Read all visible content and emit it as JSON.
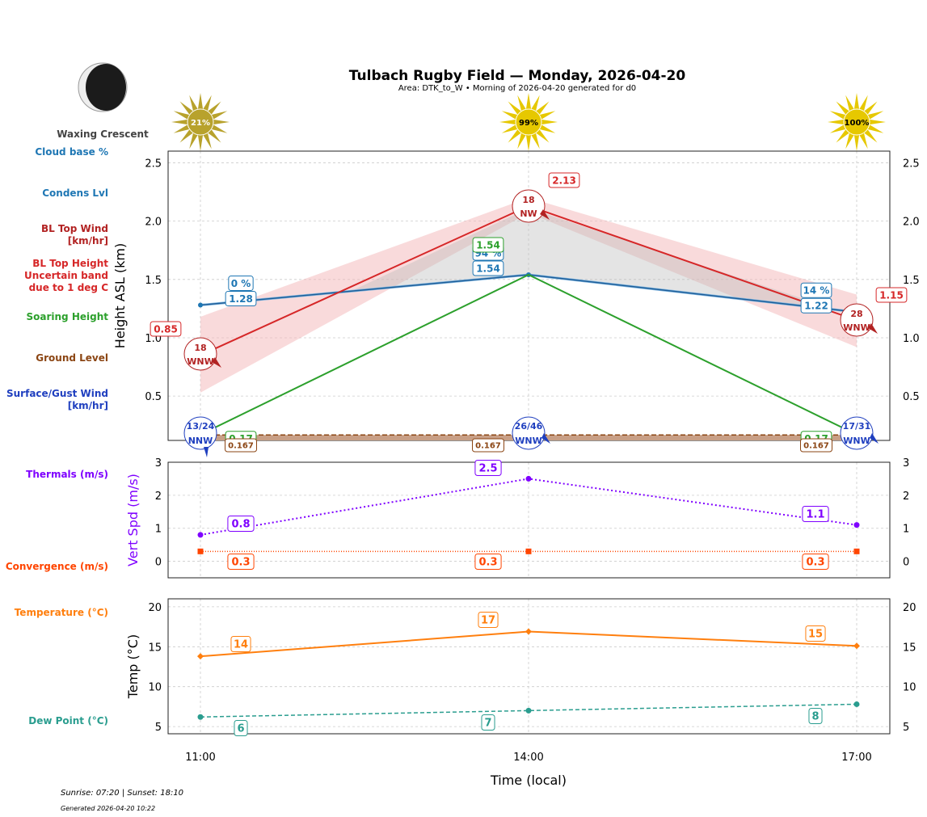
{
  "title": "Tulbach Rugby Field — Monday, 2026-04-20",
  "subtitle": "Area: DTK_to_W • Morning of 2026-04-20 generated for d0",
  "moon_phase": "Waxing Crescent",
  "sunrise_sunset": "Sunrise: 07:20 | Sunset: 18:10",
  "generated": "Generated 2026-04-20 10:22",
  "row_labels": [
    {
      "text": "Cloud base %",
      "color": "#1f77b4"
    },
    {
      "text": "Condens Lvl",
      "color": "#1f77b4"
    },
    {
      "text": "BL Top Wind|[km/hr]",
      "color": "#b22222"
    },
    {
      "text": "BL Top Height|Uncertain band|due to 1 deg C",
      "color": "#d62728"
    },
    {
      "text": "Soaring Height",
      "color": "#2ca02c"
    },
    {
      "text": "Ground Level",
      "color": "#8b4513"
    },
    {
      "text": "Surface/Gust Wind|[km/hr]",
      "color": "#1f3fbf"
    },
    {
      "text": "Thermals (m/s)",
      "color": "#7f00ff"
    },
    {
      "text": "Convergence (m/s)",
      "color": "#ff4500"
    },
    {
      "text": "Temperature (°C)",
      "color": "#ff7f0e"
    },
    {
      "text": "Dew Point (°C)",
      "color": "#2a9d8f"
    }
  ],
  "chart_data": [
    {
      "type": "line",
      "ylabel": "Height ASL (km)",
      "ylim": [
        0.12,
        2.6
      ],
      "yticks": [
        0.5,
        1.0,
        1.5,
        2.0,
        2.5
      ],
      "grid": true,
      "x": [
        "11:00",
        "14:00",
        "17:00"
      ],
      "sun_percent": [
        "21%",
        "99%",
        "100%"
      ],
      "cloud_base_percent": [
        "0 %",
        "94 %",
        "14 %"
      ],
      "condens_lvl": [
        1.28,
        1.54,
        1.22
      ],
      "bl_top": [
        0.85,
        2.13,
        1.15
      ],
      "bl_band_low": [
        0.53,
        2.07,
        0.92
      ],
      "bl_band_high": [
        1.18,
        2.2,
        1.37
      ],
      "bl_wind": [
        {
          "speed": "18",
          "dir": "WNW"
        },
        {
          "speed": "18",
          "dir": "NW"
        },
        {
          "speed": "28",
          "dir": "WNW"
        }
      ],
      "soaring": [
        0.17,
        1.54,
        0.17
      ],
      "ground": 0.167,
      "surface_wind": [
        {
          "speed": "13/24",
          "dir": "NNW"
        },
        {
          "speed": "26/46",
          "dir": "WNW"
        },
        {
          "speed": "17/31",
          "dir": "WNW"
        }
      ]
    },
    {
      "type": "line",
      "ylabel": "Vert Spd (m/s)",
      "ylim": [
        -0.5,
        3.0
      ],
      "yticks": [
        0,
        1,
        2,
        3
      ],
      "grid": true,
      "x": [
        "11:00",
        "14:00",
        "17:00"
      ],
      "thermals": [
        0.8,
        2.5,
        1.1
      ],
      "convergence": [
        0.3,
        0.3,
        0.3
      ]
    },
    {
      "type": "line",
      "ylabel": "Temp (°C)",
      "xlabel": "Time (local)",
      "ylim": [
        4.1,
        21
      ],
      "yticks": [
        5,
        10,
        15,
        20
      ],
      "grid": true,
      "x": [
        "11:00",
        "14:00",
        "17:00"
      ],
      "temperature": [
        13.8,
        16.9,
        15.1
      ],
      "temperature_labels": [
        "14",
        "17",
        "15"
      ],
      "dew_point": [
        6.2,
        7.0,
        7.8
      ],
      "dew_point_labels": [
        "6",
        "7",
        "8"
      ]
    }
  ]
}
